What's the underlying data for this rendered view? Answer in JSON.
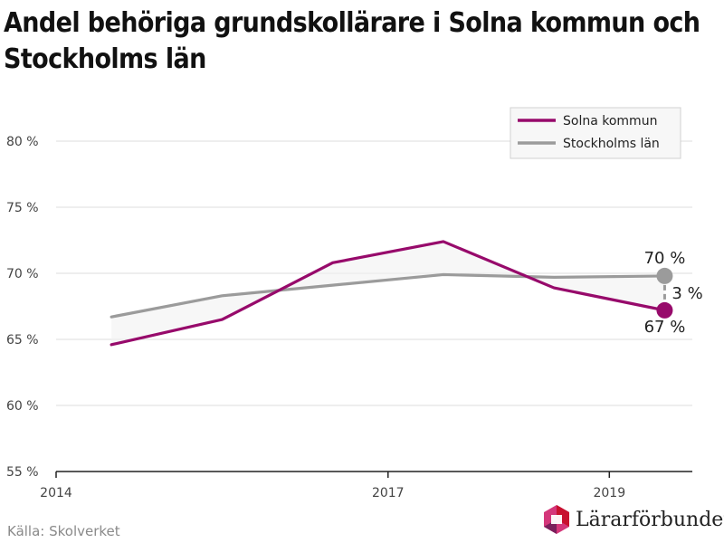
{
  "header": {
    "title": "Andel behöriga grundskollärare i Solna kommun och Stockholms län"
  },
  "footer": {
    "source": "Källa: Skolverket",
    "brand": "Lärarförbundet"
  },
  "colors": {
    "solna": "#970a6b",
    "stockholm": "#9b9b9b",
    "fill": "#f1f1f1",
    "grid": "#dcdcdc",
    "brand_pink": "#d4367a",
    "brand_red": "#c8102e"
  },
  "chart_data": {
    "type": "line",
    "ylim": [
      55,
      80
    ],
    "xlim": [
      2014,
      2019.75
    ],
    "y_ticks": [
      55,
      60,
      65,
      70,
      75,
      80
    ],
    "y_tick_labels": [
      "55 %",
      "60 %",
      "65 %",
      "70 %",
      "75 %",
      "80 %"
    ],
    "x_ticks": [
      2014,
      2017,
      2019
    ],
    "x_tick_labels": [
      "2014",
      "2017",
      "2019"
    ],
    "grid": true,
    "legend_position": "top-right",
    "x": [
      2014.5,
      2015.5,
      2016.5,
      2017.5,
      2018.5,
      2019.5
    ],
    "series": [
      {
        "name": "Solna kommun",
        "key": "solna",
        "values": [
          64.6,
          66.5,
          70.8,
          72.4,
          68.9,
          67.2
        ]
      },
      {
        "name": "Stockholms län",
        "key": "stockholm",
        "values": [
          66.7,
          68.3,
          69.1,
          69.9,
          69.7,
          69.8
        ]
      }
    ],
    "annotations": {
      "stockholm_end": "70 %",
      "solna_end": "67 %",
      "difference": "3 %"
    }
  }
}
